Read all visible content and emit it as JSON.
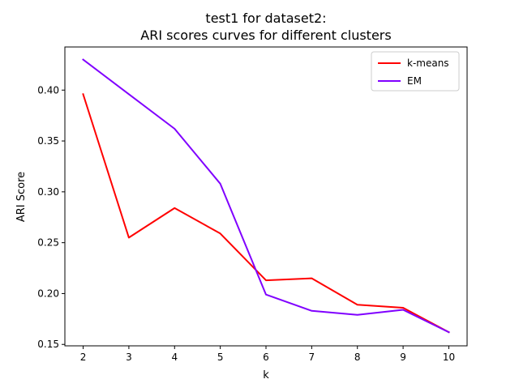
{
  "chart_data": {
    "type": "line",
    "title_line1": "test1 for dataset2:",
    "title_line2": "ARI scores curves for different clusters",
    "xlabel": "k",
    "ylabel": "ARI Score",
    "x": [
      2,
      3,
      4,
      5,
      6,
      7,
      8,
      9,
      10
    ],
    "xlim": [
      1.6,
      10.4
    ],
    "ylim": [
      0.1486,
      0.4424
    ],
    "x_ticks": [
      2,
      3,
      4,
      5,
      6,
      7,
      8,
      9,
      10
    ],
    "y_ticks": [
      0.15,
      0.2,
      0.25,
      0.3,
      0.35,
      0.4
    ],
    "y_tick_labels": [
      "0.15",
      "0.20",
      "0.25",
      "0.30",
      "0.35",
      "0.40"
    ],
    "grid": false,
    "legend_position": "top-right",
    "series": [
      {
        "name": "k-means",
        "color": "#ff0000",
        "values": [
          0.396,
          0.255,
          0.284,
          0.259,
          0.213,
          0.215,
          0.189,
          0.186,
          0.162
        ]
      },
      {
        "name": "EM",
        "color": "#8000ff",
        "values": [
          0.43,
          0.396,
          0.362,
          0.308,
          0.199,
          0.183,
          0.179,
          0.184,
          0.162
        ]
      }
    ]
  }
}
